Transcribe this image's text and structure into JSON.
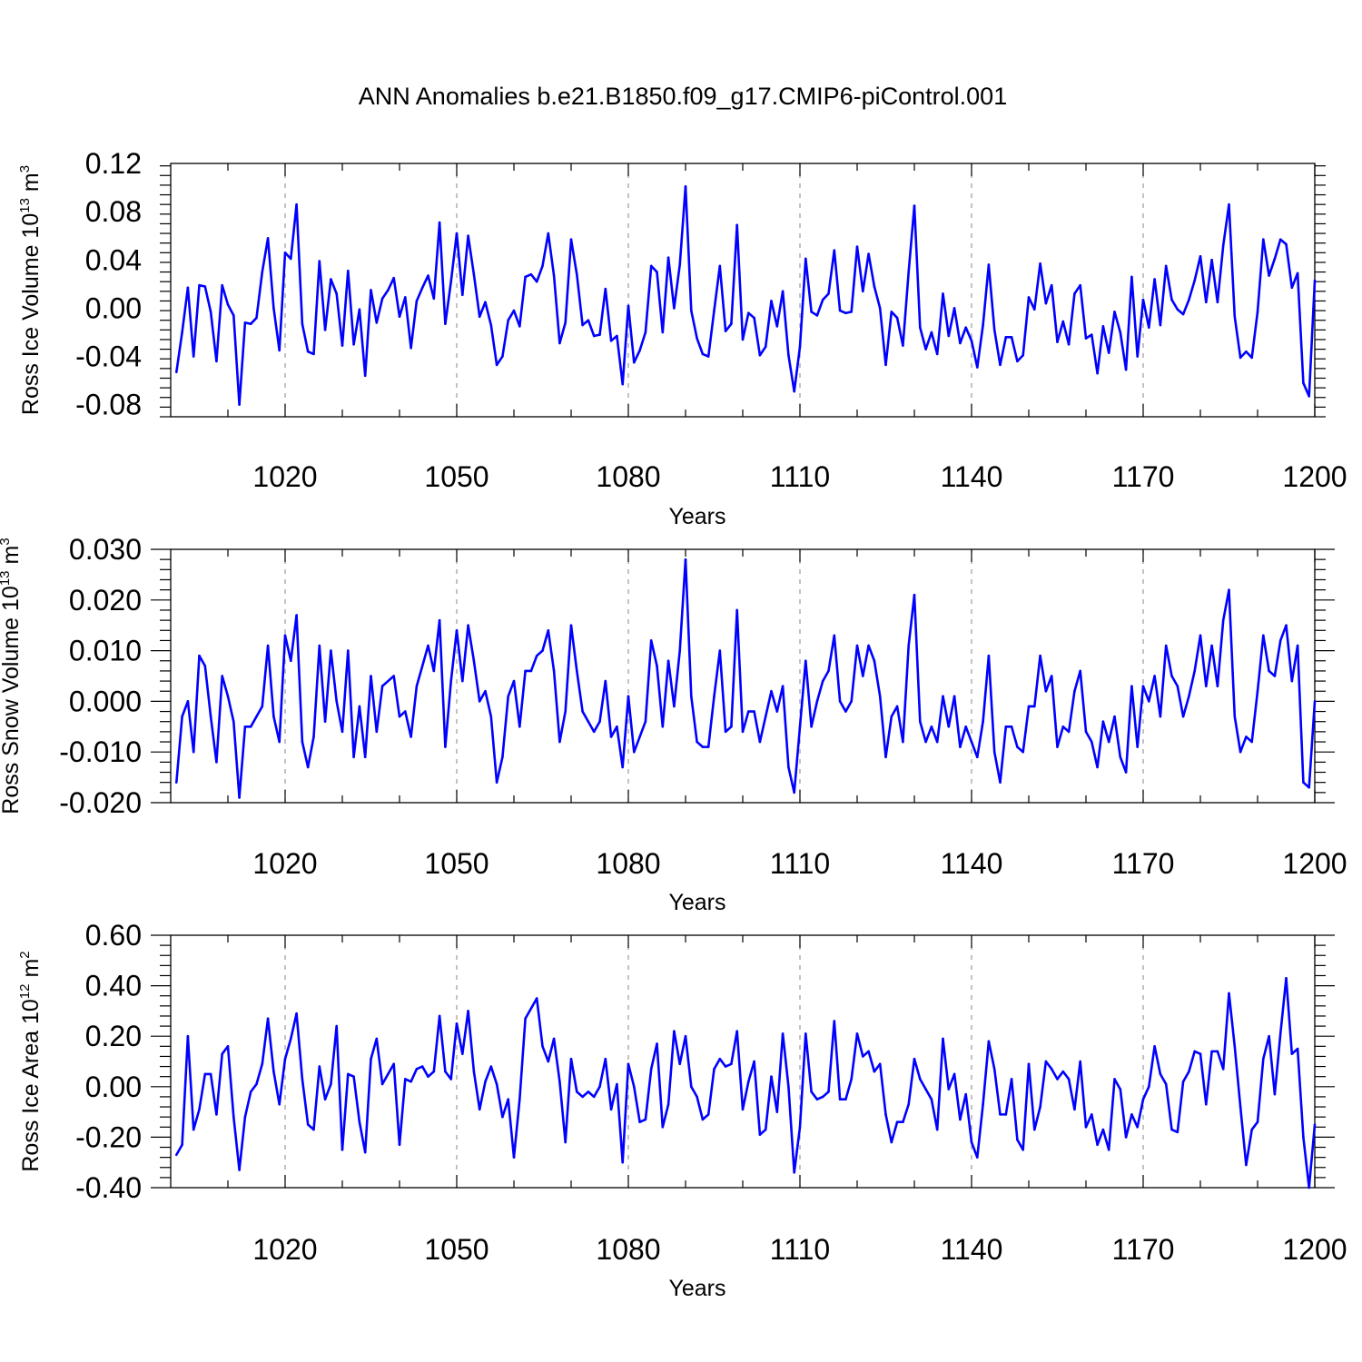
{
  "title": "ANN Anomalies b.e21.B1850.f09_g17.CMIP6-piControl.001",
  "line_color": "#0000ff",
  "chart_data": [
    {
      "type": "line",
      "ylabel": "Ross Ice Volume 10",
      "ylabel_exp": "13",
      "ylabel_unit": "m",
      "ylabel_unit_exp": "3",
      "xlabel": "Years",
      "xlim": [
        1000,
        1200
      ],
      "ylim": [
        -0.09,
        0.12
      ],
      "xticks": [
        1020,
        1050,
        1080,
        1110,
        1140,
        1170,
        1200
      ],
      "xtick_labels": [
        "1020",
        "1050",
        "1080",
        "1110",
        "1140",
        "1170",
        "1200"
      ],
      "yticks": [
        -0.08,
        -0.04,
        0.0,
        0.04,
        0.08,
        0.12
      ],
      "ytick_labels": [
        "-0.08",
        "-0.04",
        "0.00",
        "0.04",
        "0.08",
        "0.12"
      ],
      "grid": "vertical dashed at major x ticks",
      "x_start": 1001,
      "values": [
        -0.053,
        -0.02,
        0.017,
        -0.04,
        0.019,
        0.018,
        -0.003,
        -0.044,
        0.019,
        0.003,
        -0.006,
        -0.08,
        -0.012,
        -0.013,
        -0.008,
        0.03,
        0.058,
        0.0,
        -0.035,
        0.046,
        0.041,
        0.086,
        -0.013,
        -0.036,
        -0.038,
        0.039,
        -0.018,
        0.024,
        0.012,
        -0.031,
        0.031,
        -0.03,
        -0.001,
        -0.056,
        0.015,
        -0.012,
        0.008,
        0.015,
        0.025,
        -0.007,
        0.009,
        -0.033,
        0.006,
        0.017,
        0.027,
        0.008,
        0.071,
        -0.013,
        0.022,
        0.062,
        0.011,
        0.06,
        0.028,
        -0.007,
        0.005,
        -0.014,
        -0.047,
        -0.04,
        -0.01,
        -0.002,
        -0.015,
        0.026,
        0.028,
        0.022,
        0.035,
        0.062,
        0.027,
        -0.029,
        -0.012,
        0.057,
        0.028,
        -0.014,
        -0.01,
        -0.023,
        -0.022,
        0.016,
        -0.027,
        -0.023,
        -0.063,
        0.002,
        -0.045,
        -0.035,
        -0.02,
        0.035,
        0.03,
        -0.02,
        0.042,
        0.0,
        0.036,
        0.101,
        -0.002,
        -0.025,
        -0.038,
        -0.04,
        -0.002,
        0.035,
        -0.019,
        -0.013,
        0.069,
        -0.026,
        -0.004,
        -0.008,
        -0.039,
        -0.032,
        0.006,
        -0.015,
        0.014,
        -0.039,
        -0.069,
        -0.032,
        0.041,
        -0.003,
        -0.006,
        0.007,
        0.012,
        0.048,
        -0.002,
        -0.004,
        -0.003,
        0.051,
        0.014,
        0.045,
        0.018,
        0.0,
        -0.047,
        -0.003,
        -0.008,
        -0.031,
        0.03,
        0.085,
        -0.016,
        -0.034,
        -0.02,
        -0.038,
        0.012,
        -0.023,
        0.0,
        -0.029,
        -0.016,
        -0.027,
        -0.049,
        -0.014,
        0.036,
        -0.018,
        -0.047,
        -0.024,
        -0.024,
        -0.044,
        -0.039,
        0.009,
        -0.001,
        0.037,
        0.004,
        0.019,
        -0.028,
        -0.011,
        -0.03,
        0.012,
        0.019,
        -0.025,
        -0.022,
        -0.054,
        -0.015,
        -0.037,
        -0.003,
        -0.02,
        -0.051,
        0.026,
        -0.04,
        0.007,
        -0.016,
        0.024,
        -0.014,
        0.035,
        0.007,
        -0.001,
        -0.005,
        0.007,
        0.023,
        0.043,
        0.005,
        0.04,
        0.005,
        0.052,
        0.086,
        -0.007,
        -0.041,
        -0.036,
        -0.041,
        -0.003,
        0.057,
        0.027,
        0.041,
        0.057,
        0.053,
        0.017,
        0.029,
        -0.062,
        -0.073,
        0.023
      ]
    },
    {
      "type": "line",
      "ylabel": "Ross Snow Volume 10",
      "ylabel_exp": "13",
      "ylabel_unit": "m",
      "ylabel_unit_exp": "3",
      "xlabel": "Years",
      "xlim": [
        1000,
        1200
      ],
      "ylim": [
        -0.02,
        0.03
      ],
      "xticks": [
        1020,
        1050,
        1080,
        1110,
        1140,
        1170,
        1200
      ],
      "xtick_labels": [
        "1020",
        "1050",
        "1080",
        "1110",
        "1140",
        "1170",
        "1200"
      ],
      "yticks": [
        -0.02,
        -0.01,
        0.0,
        0.01,
        0.02,
        0.03
      ],
      "ytick_labels": [
        "-0.020",
        "-0.010",
        "0.000",
        "0.010",
        "0.020",
        "0.030"
      ],
      "grid": "vertical dashed at major x ticks",
      "x_start": 1001,
      "values": [
        -0.016,
        -0.003,
        0.0,
        -0.01,
        0.009,
        0.007,
        -0.003,
        -0.012,
        0.005,
        0.001,
        -0.004,
        -0.019,
        -0.005,
        -0.005,
        -0.003,
        -0.001,
        0.011,
        -0.003,
        -0.008,
        0.013,
        0.008,
        0.017,
        -0.008,
        -0.013,
        -0.007,
        0.011,
        -0.004,
        0.01,
        0.0,
        -0.006,
        0.01,
        -0.011,
        -0.001,
        -0.011,
        0.005,
        -0.006,
        0.003,
        0.004,
        0.005,
        -0.003,
        -0.002,
        -0.007,
        0.003,
        0.007,
        0.011,
        0.006,
        0.016,
        -0.009,
        0.004,
        0.014,
        0.004,
        0.015,
        0.008,
        0.0,
        0.002,
        -0.003,
        -0.016,
        -0.011,
        0.001,
        0.004,
        -0.005,
        0.006,
        0.006,
        0.009,
        0.01,
        0.014,
        0.006,
        -0.008,
        -0.002,
        0.015,
        0.006,
        -0.002,
        -0.004,
        -0.006,
        -0.004,
        0.004,
        -0.007,
        -0.005,
        -0.013,
        0.001,
        -0.01,
        -0.007,
        -0.004,
        0.012,
        0.007,
        -0.005,
        0.008,
        -0.001,
        0.01,
        0.028,
        0.001,
        -0.008,
        -0.009,
        -0.009,
        0.001,
        0.01,
        -0.006,
        -0.005,
        0.018,
        -0.006,
        -0.002,
        -0.002,
        -0.008,
        -0.003,
        0.002,
        -0.002,
        0.003,
        -0.013,
        -0.018,
        -0.005,
        0.008,
        -0.005,
        0.0,
        0.004,
        0.006,
        0.013,
        0.0,
        -0.002,
        0.0,
        0.011,
        0.005,
        0.011,
        0.008,
        0.001,
        -0.011,
        -0.003,
        -0.001,
        -0.008,
        0.011,
        0.021,
        -0.004,
        -0.008,
        -0.005,
        -0.008,
        0.001,
        -0.005,
        0.001,
        -0.009,
        -0.005,
        -0.008,
        -0.011,
        -0.004,
        0.009,
        -0.01,
        -0.016,
        -0.005,
        -0.005,
        -0.009,
        -0.01,
        -0.001,
        -0.001,
        0.009,
        0.002,
        0.005,
        -0.009,
        -0.005,
        -0.006,
        0.002,
        0.006,
        -0.006,
        -0.008,
        -0.013,
        -0.004,
        -0.008,
        -0.003,
        -0.011,
        -0.014,
        0.003,
        -0.009,
        0.003,
        0.0,
        0.005,
        -0.003,
        0.011,
        0.005,
        0.003,
        -0.003,
        0.001,
        0.006,
        0.013,
        0.003,
        0.011,
        0.003,
        0.016,
        0.022,
        -0.003,
        -0.01,
        -0.007,
        -0.008,
        0.002,
        0.013,
        0.006,
        0.005,
        0.012,
        0.015,
        0.004,
        0.011,
        -0.016,
        -0.017,
        0.0
      ]
    },
    {
      "type": "line",
      "ylabel": "Ross Ice Area 10",
      "ylabel_exp": "12",
      "ylabel_unit": "m",
      "ylabel_unit_exp": "2",
      "xlabel": "Years",
      "xlim": [
        1000,
        1200
      ],
      "ylim": [
        -0.4,
        0.6
      ],
      "xticks": [
        1020,
        1050,
        1080,
        1110,
        1140,
        1170,
        1200
      ],
      "xtick_labels": [
        "1020",
        "1050",
        "1080",
        "1110",
        "1140",
        "1170",
        "1200"
      ],
      "yticks": [
        -0.4,
        -0.2,
        0.0,
        0.2,
        0.4,
        0.6
      ],
      "ytick_labels": [
        "-0.40",
        "-0.20",
        "0.00",
        "0.20",
        "0.40",
        "0.60"
      ],
      "grid": "vertical dashed at major x ticks",
      "x_start": 1001,
      "values": [
        -0.27,
        -0.23,
        0.2,
        -0.17,
        -0.09,
        0.05,
        0.05,
        -0.11,
        0.13,
        0.16,
        -0.12,
        -0.33,
        -0.12,
        -0.02,
        0.01,
        0.09,
        0.27,
        0.06,
        -0.07,
        0.11,
        0.19,
        0.29,
        0.03,
        -0.15,
        -0.17,
        0.08,
        -0.05,
        0.01,
        0.24,
        -0.25,
        0.05,
        0.04,
        -0.14,
        -0.26,
        0.11,
        0.19,
        0.01,
        0.05,
        0.09,
        -0.23,
        0.03,
        0.02,
        0.07,
        0.08,
        0.04,
        0.06,
        0.28,
        0.06,
        0.03,
        0.25,
        0.13,
        0.3,
        0.06,
        -0.09,
        0.02,
        0.08,
        0.01,
        -0.12,
        -0.05,
        -0.28,
        -0.05,
        0.27,
        0.31,
        0.35,
        0.16,
        0.1,
        0.19,
        0.02,
        -0.22,
        0.11,
        -0.02,
        -0.04,
        -0.02,
        -0.04,
        0.0,
        0.11,
        -0.09,
        0.01,
        -0.3,
        0.09,
        0.0,
        -0.14,
        -0.13,
        0.07,
        0.17,
        -0.16,
        -0.07,
        0.22,
        0.09,
        0.2,
        0.0,
        -0.04,
        -0.13,
        -0.11,
        0.07,
        0.11,
        0.08,
        0.09,
        0.22,
        -0.09,
        0.02,
        0.1,
        -0.19,
        -0.17,
        0.04,
        -0.1,
        0.21,
        0.0,
        -0.34,
        -0.16,
        0.21,
        -0.02,
        -0.05,
        -0.04,
        -0.02,
        0.26,
        -0.05,
        -0.05,
        0.03,
        0.21,
        0.12,
        0.14,
        0.06,
        0.09,
        -0.11,
        -0.22,
        -0.14,
        -0.14,
        -0.07,
        0.11,
        0.03,
        -0.01,
        -0.05,
        -0.17,
        0.19,
        -0.01,
        0.05,
        -0.13,
        -0.03,
        -0.22,
        -0.28,
        -0.07,
        0.18,
        0.07,
        -0.11,
        -0.11,
        0.03,
        -0.21,
        -0.25,
        0.09,
        -0.17,
        -0.08,
        0.1,
        0.07,
        0.03,
        0.06,
        0.03,
        -0.09,
        0.1,
        -0.16,
        -0.11,
        -0.23,
        -0.17,
        -0.25,
        0.03,
        -0.01,
        -0.2,
        -0.11,
        -0.16,
        -0.05,
        0.0,
        0.16,
        0.05,
        0.01,
        -0.17,
        -0.18,
        0.02,
        0.06,
        0.14,
        0.13,
        -0.07,
        0.14,
        0.14,
        0.07,
        0.37,
        0.16,
        -0.08,
        -0.31,
        -0.17,
        -0.14,
        0.11,
        0.2,
        -0.03,
        0.21,
        0.43,
        0.13,
        0.15,
        -0.2,
        -0.4,
        -0.15
      ]
    }
  ]
}
